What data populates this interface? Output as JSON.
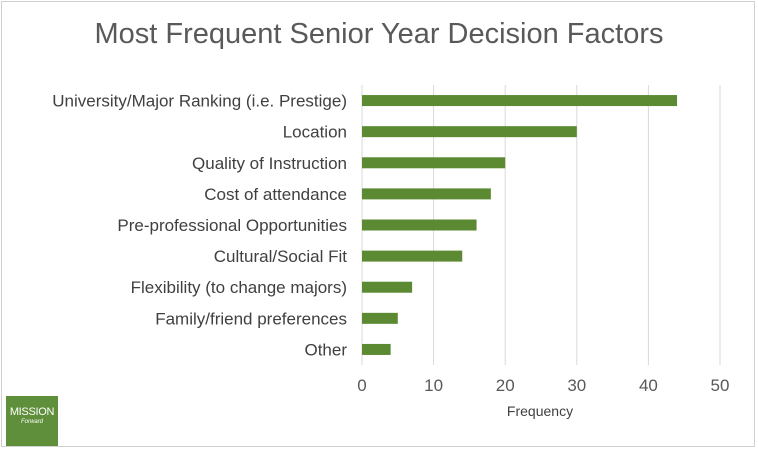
{
  "chart_data": {
    "type": "bar",
    "orientation": "horizontal",
    "title": "Most Frequent Senior Year Decision Factors",
    "xlabel": "Frequency",
    "ylabel": "",
    "xlim": [
      0,
      50
    ],
    "xticks": [
      0,
      10,
      20,
      30,
      40,
      50
    ],
    "grid": true,
    "bar_color": "#5b8a32",
    "categories": [
      "University/Major Ranking (i.e. Prestige)",
      "Location",
      "Quality of Instruction",
      "Cost of attendance",
      "Pre-professional Opportunities",
      "Cultural/Social Fit",
      "Flexibility (to change majors)",
      "Family/friend preferences",
      "Other"
    ],
    "values": [
      44,
      30,
      20,
      18,
      16,
      14,
      7,
      5,
      4
    ]
  },
  "logo": {
    "line1": "MISSION",
    "line2": "Forward",
    "color": "#5f8f3a"
  }
}
